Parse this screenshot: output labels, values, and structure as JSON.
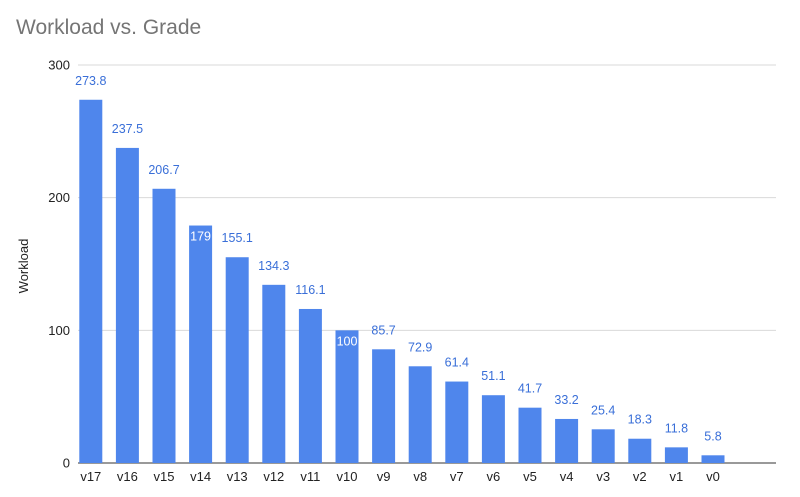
{
  "chart_data": {
    "type": "bar",
    "title": "Workload vs. Grade",
    "xlabel": "",
    "ylabel": "Workload",
    "ylim": [
      0,
      300
    ],
    "yticks": [
      0,
      100,
      200,
      300
    ],
    "grid": true,
    "categories": [
      "v17",
      "v16",
      "v15",
      "v14",
      "v13",
      "v12",
      "v11",
      "v10",
      "v9",
      "v8",
      "v7",
      "v6",
      "v5",
      "v4",
      "v3",
      "v2",
      "v1",
      "v0"
    ],
    "values": [
      273.8,
      237.5,
      206.7,
      179,
      155.1,
      134.3,
      116.1,
      100,
      85.7,
      72.9,
      61.4,
      51.1,
      41.7,
      33.2,
      25.4,
      18.3,
      11.8,
      5.8
    ],
    "data_labels": [
      "273.8",
      "237.5",
      "206.7",
      "179",
      "155.1",
      "134.3",
      "116.1",
      "100",
      "85.7",
      "72.9",
      "61.4",
      "51.1",
      "41.7",
      "33.2",
      "25.4",
      "18.3",
      "11.8",
      "5.8"
    ],
    "colors": {
      "bar": "#4f86ec",
      "label_outside": "#3a6fd8",
      "label_inside": "#ffffff",
      "grid": "#d9d9d9",
      "baseline": "#333333",
      "title": "#757575"
    }
  }
}
